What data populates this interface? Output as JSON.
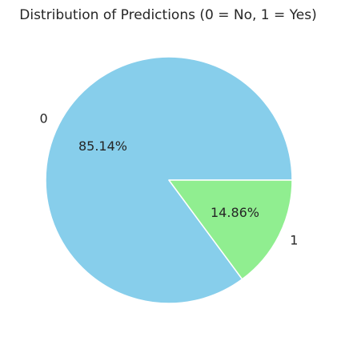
{
  "chart_data": {
    "type": "pie",
    "title": "Distribution of Predictions (0 = No, 1 = Yes)",
    "categories": [
      "0",
      "1"
    ],
    "values": [
      85.14,
      14.86
    ],
    "value_labels": [
      "85.14%",
      "14.86%"
    ],
    "colors": [
      "#87ceeb",
      "#90ee90"
    ],
    "start_angle_deg": 0,
    "direction": "counterclockwise",
    "legend": "none"
  }
}
